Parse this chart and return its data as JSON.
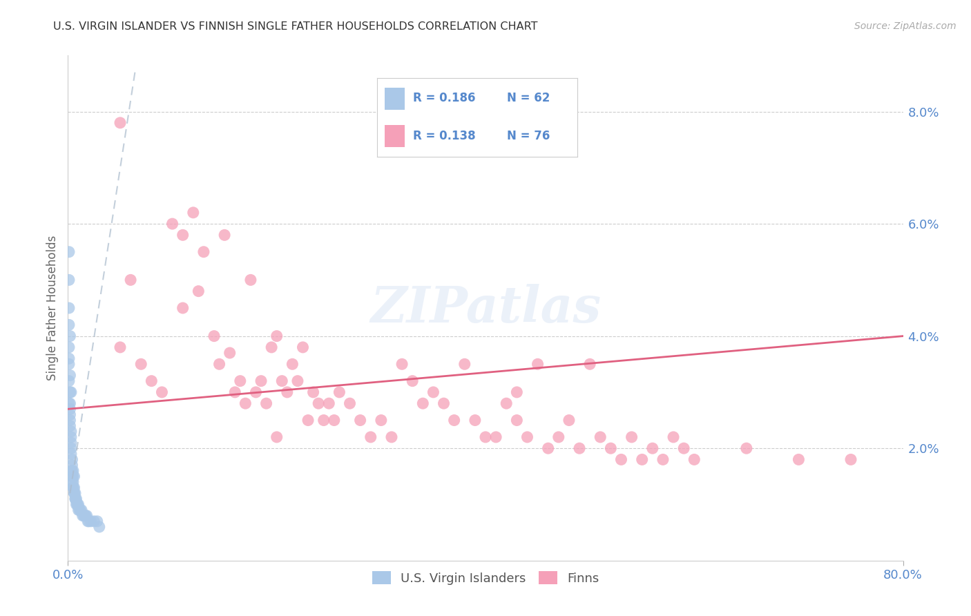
{
  "title": "U.S. VIRGIN ISLANDER VS FINNISH SINGLE FATHER HOUSEHOLDS CORRELATION CHART",
  "source": "Source: ZipAtlas.com",
  "ylabel": "Single Father Households",
  "ytick_labels": [
    "2.0%",
    "4.0%",
    "6.0%",
    "8.0%"
  ],
  "ytick_values": [
    0.02,
    0.04,
    0.06,
    0.08
  ],
  "xlim": [
    0.0,
    0.8
  ],
  "ylim": [
    0.0,
    0.09
  ],
  "watermark": "ZIPatlas",
  "blue_color": "#aac8e8",
  "pink_color": "#f5a0b8",
  "blue_line_color": "#aabbcc",
  "pink_line_color": "#e06080",
  "axis_color": "#5588cc",
  "grid_color": "#cccccc",
  "vi_line_x": [
    0.002,
    0.065
  ],
  "vi_line_y": [
    0.012,
    0.088
  ],
  "finn_line_x": [
    0.0,
    0.8
  ],
  "finn_line_y": [
    0.027,
    0.04
  ],
  "vi_x": [
    0.001,
    0.001,
    0.001,
    0.001,
    0.001,
    0.002,
    0.002,
    0.002,
    0.002,
    0.002,
    0.003,
    0.003,
    0.003,
    0.003,
    0.003,
    0.004,
    0.004,
    0.004,
    0.004,
    0.005,
    0.005,
    0.005,
    0.005,
    0.006,
    0.006,
    0.006,
    0.007,
    0.007,
    0.007,
    0.008,
    0.008,
    0.009,
    0.009,
    0.01,
    0.01,
    0.011,
    0.012,
    0.013,
    0.014,
    0.015,
    0.016,
    0.017,
    0.018,
    0.019,
    0.02,
    0.022,
    0.025,
    0.028,
    0.03,
    0.001,
    0.002,
    0.003,
    0.001,
    0.002,
    0.001,
    0.002,
    0.001,
    0.003,
    0.004,
    0.005,
    0.006
  ],
  "vi_y": [
    0.05,
    0.042,
    0.038,
    0.035,
    0.032,
    0.03,
    0.028,
    0.026,
    0.025,
    0.024,
    0.023,
    0.022,
    0.021,
    0.02,
    0.019,
    0.018,
    0.017,
    0.016,
    0.015,
    0.015,
    0.014,
    0.013,
    0.013,
    0.013,
    0.012,
    0.012,
    0.012,
    0.011,
    0.011,
    0.011,
    0.01,
    0.01,
    0.01,
    0.01,
    0.009,
    0.009,
    0.009,
    0.009,
    0.008,
    0.008,
    0.008,
    0.008,
    0.008,
    0.007,
    0.007,
    0.007,
    0.007,
    0.007,
    0.006,
    0.036,
    0.033,
    0.03,
    0.028,
    0.027,
    0.045,
    0.04,
    0.055,
    0.016,
    0.014,
    0.016,
    0.015
  ],
  "finn_x": [
    0.05,
    0.06,
    0.07,
    0.08,
    0.09,
    0.1,
    0.11,
    0.12,
    0.125,
    0.13,
    0.14,
    0.145,
    0.15,
    0.155,
    0.16,
    0.165,
    0.17,
    0.175,
    0.18,
    0.185,
    0.19,
    0.195,
    0.2,
    0.205,
    0.21,
    0.215,
    0.22,
    0.225,
    0.23,
    0.235,
    0.24,
    0.245,
    0.25,
    0.255,
    0.26,
    0.27,
    0.28,
    0.29,
    0.3,
    0.31,
    0.32,
    0.33,
    0.34,
    0.35,
    0.36,
    0.37,
    0.38,
    0.39,
    0.4,
    0.41,
    0.42,
    0.43,
    0.44,
    0.45,
    0.46,
    0.47,
    0.48,
    0.49,
    0.5,
    0.51,
    0.52,
    0.53,
    0.54,
    0.55,
    0.56,
    0.57,
    0.58,
    0.59,
    0.6,
    0.65,
    0.7,
    0.75,
    0.05,
    0.11,
    0.2,
    0.43
  ],
  "finn_y": [
    0.078,
    0.05,
    0.035,
    0.032,
    0.03,
    0.06,
    0.058,
    0.062,
    0.048,
    0.055,
    0.04,
    0.035,
    0.058,
    0.037,
    0.03,
    0.032,
    0.028,
    0.05,
    0.03,
    0.032,
    0.028,
    0.038,
    0.04,
    0.032,
    0.03,
    0.035,
    0.032,
    0.038,
    0.025,
    0.03,
    0.028,
    0.025,
    0.028,
    0.025,
    0.03,
    0.028,
    0.025,
    0.022,
    0.025,
    0.022,
    0.035,
    0.032,
    0.028,
    0.03,
    0.028,
    0.025,
    0.035,
    0.025,
    0.022,
    0.022,
    0.028,
    0.025,
    0.022,
    0.035,
    0.02,
    0.022,
    0.025,
    0.02,
    0.035,
    0.022,
    0.02,
    0.018,
    0.022,
    0.018,
    0.02,
    0.018,
    0.022,
    0.02,
    0.018,
    0.02,
    0.018,
    0.018,
    0.038,
    0.045,
    0.022,
    0.03
  ]
}
